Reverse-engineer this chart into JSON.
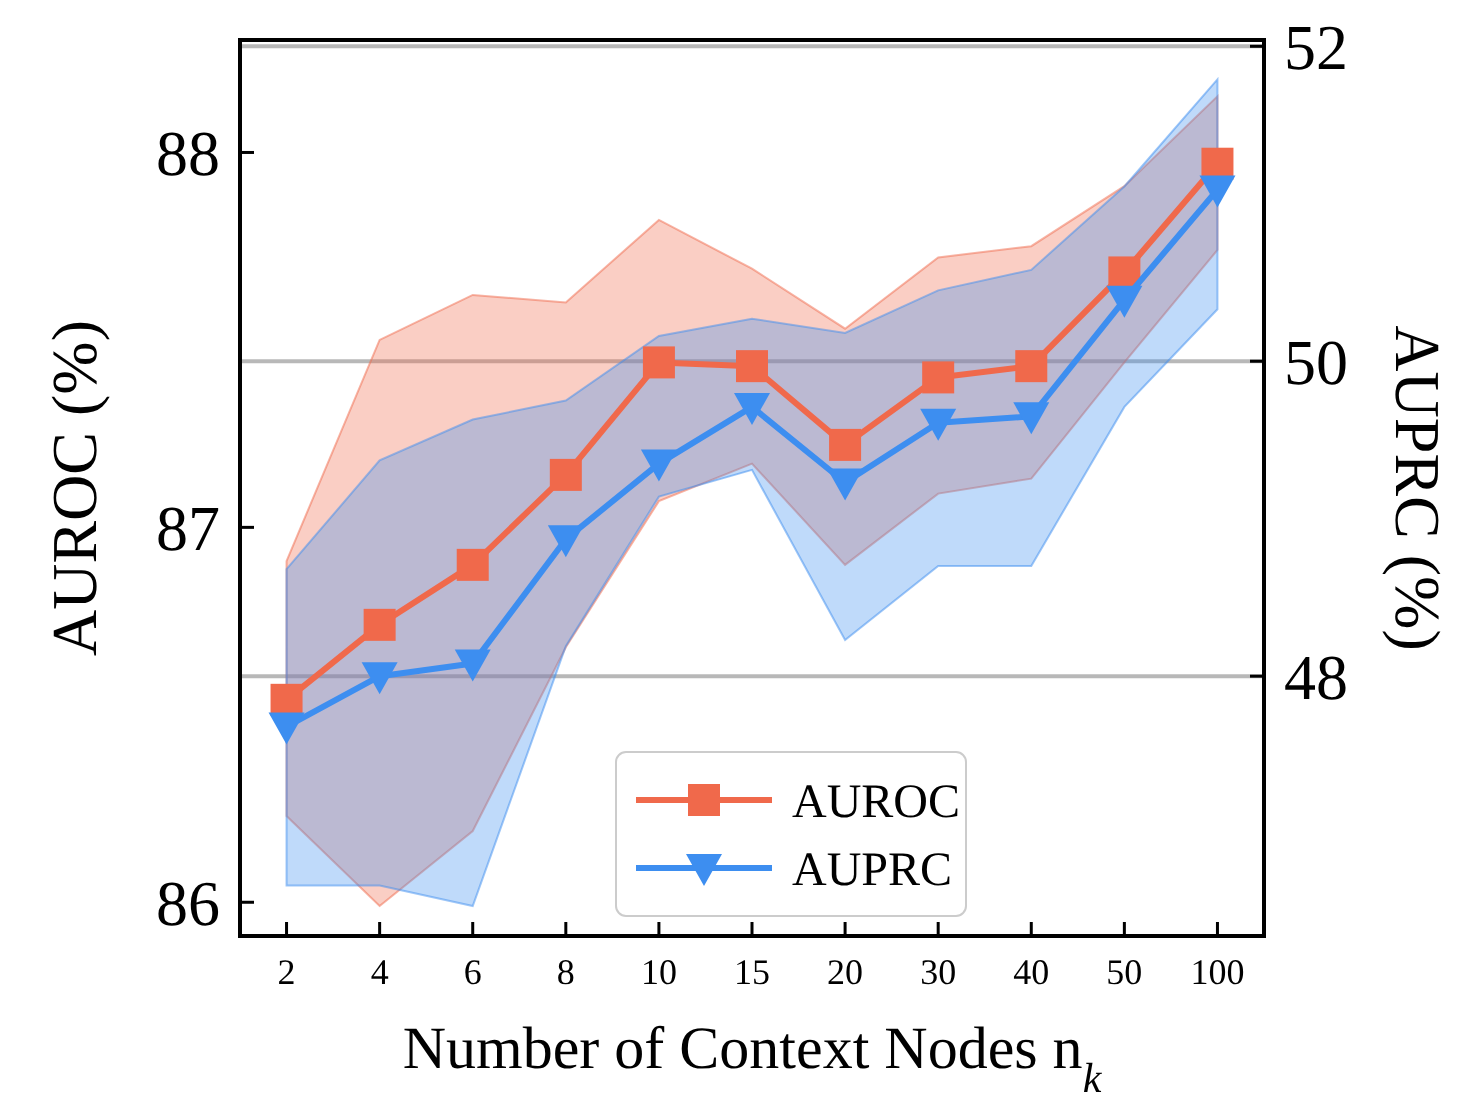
{
  "chart_data": {
    "type": "line",
    "xlabel": "Number of Context Nodes n$_{k}$",
    "ylabel": "AUROC (%)",
    "y2label": "AUPRC (%)",
    "categories": [
      "2",
      "4",
      "6",
      "8",
      "10",
      "15",
      "20",
      "30",
      "40",
      "50",
      "100"
    ],
    "series": [
      {
        "name": "AUROC",
        "color": "#f0694b",
        "marker": "square",
        "values": [
          86.54,
          86.74,
          86.9,
          87.14,
          87.44,
          87.43,
          87.22,
          87.4,
          87.43,
          87.68,
          87.97
        ],
        "lower": [
          86.23,
          85.99,
          86.19,
          86.68,
          87.07,
          87.17,
          86.9,
          87.09,
          87.13,
          87.44,
          87.74
        ],
        "upper": [
          86.91,
          87.5,
          87.62,
          87.6,
          87.82,
          87.69,
          87.53,
          87.72,
          87.75,
          87.91,
          88.15
        ]
      },
      {
        "name": "AUPRC",
        "color": "#3d8ef0",
        "marker": "triangle",
        "axis": "y2",
        "values": [
          47.68,
          48.0,
          48.08,
          48.87,
          49.35,
          49.71,
          49.23,
          49.61,
          49.65,
          50.39,
          51.09
        ],
        "lower": [
          46.67,
          46.67,
          46.54,
          48.19,
          49.14,
          49.31,
          48.23,
          48.7,
          48.7,
          49.71,
          50.33
        ],
        "upper": [
          48.68,
          49.37,
          49.63,
          49.75,
          50.16,
          50.27,
          50.18,
          50.45,
          50.58,
          51.11,
          51.79
        ]
      }
    ],
    "ylim": [
      85.91,
      88.3
    ],
    "yticks": [
      86,
      87,
      88
    ],
    "y2lim": [
      46.35,
      52.04
    ],
    "y2ticks": [
      48,
      50,
      52
    ],
    "grid": "y2",
    "legend": "bottom",
    "line_style": "solid"
  }
}
